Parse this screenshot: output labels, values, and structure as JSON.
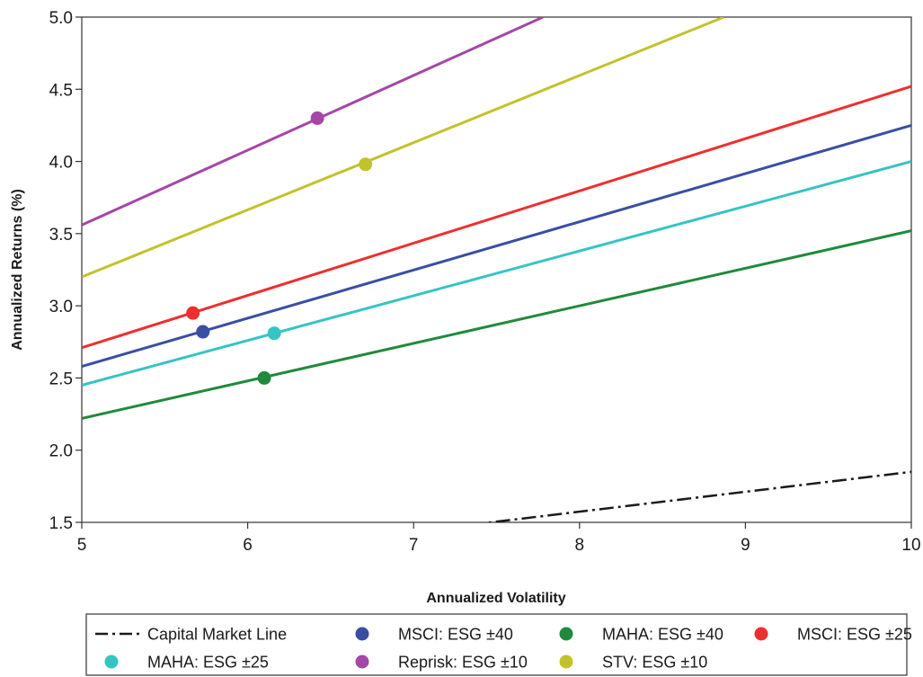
{
  "chart_data": {
    "type": "line",
    "title": "",
    "xlabel": "Annualized Volatility",
    "ylabel": "Annualized Returns (%)",
    "xlim": [
      5,
      10
    ],
    "ylim": [
      1.5,
      5.0
    ],
    "x_ticks": [
      5,
      6,
      7,
      8,
      9,
      10
    ],
    "y_ticks": [
      "1.5",
      "2.0",
      "2.5",
      "3.0",
      "3.5",
      "4.0",
      "4.5",
      "5.0"
    ],
    "grid": false,
    "legend_position": "bottom",
    "series": [
      {
        "name": "Capital Market Line",
        "color": "#1a1a1a",
        "style": "dash-dot",
        "x": [
          5,
          10
        ],
        "y": [
          1.16,
          1.85
        ],
        "marker": null
      },
      {
        "name": "MSCI: ESG ±40",
        "color": "#3a4ea3",
        "style": "solid",
        "x": [
          5,
          10
        ],
        "y": [
          2.58,
          4.25
        ],
        "marker": {
          "x": 5.73,
          "y": 2.82
        }
      },
      {
        "name": "MAHA: ESG ±40",
        "color": "#1f8a3c",
        "style": "solid",
        "x": [
          5,
          10
        ],
        "y": [
          2.22,
          3.52
        ],
        "marker": {
          "x": 6.1,
          "y": 2.5
        }
      },
      {
        "name": "MSCI: ESG ±25",
        "color": "#ee2f2f",
        "style": "solid",
        "x": [
          5,
          10
        ],
        "y": [
          2.71,
          4.52
        ],
        "marker": {
          "x": 5.67,
          "y": 2.95
        }
      },
      {
        "name": "MAHA: ESG ±25",
        "color": "#35c4c4",
        "style": "solid",
        "x": [
          5,
          10
        ],
        "y": [
          2.45,
          4.0
        ],
        "marker": {
          "x": 6.16,
          "y": 2.81
        }
      },
      {
        "name": "Reprisk: ESG ±10",
        "color": "#a546a8",
        "style": "solid",
        "x": [
          5,
          7.78
        ],
        "y": [
          3.56,
          5.0
        ],
        "marker": {
          "x": 6.42,
          "y": 4.3
        }
      },
      {
        "name": "STV: ESG ±10",
        "color": "#c2c22b",
        "style": "solid",
        "x": [
          5,
          8.87
        ],
        "y": [
          3.2,
          5.0
        ],
        "marker": {
          "x": 6.71,
          "y": 3.98
        }
      }
    ]
  }
}
